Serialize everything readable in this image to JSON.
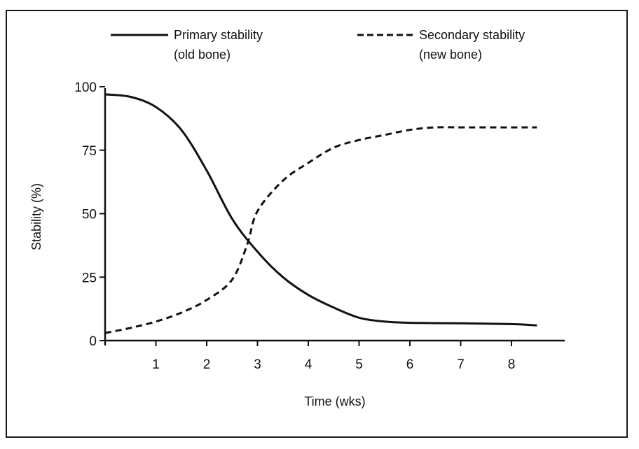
{
  "chart_data": {
    "type": "line",
    "xlabel": "Time (wks)",
    "ylabel": "Stability (%)",
    "xlim": [
      0,
      9
    ],
    "ylim": [
      0,
      100
    ],
    "x_ticks": [
      "1",
      "2",
      "3",
      "4",
      "5",
      "6",
      "7",
      "8"
    ],
    "y_ticks": [
      "0",
      "25",
      "50",
      "75",
      "100"
    ],
    "grid": false,
    "legend_position": "top",
    "series": [
      {
        "name": "Primary stability",
        "name_line2": "(old bone)",
        "style": "solid",
        "x": [
          0,
          0.5,
          1,
          1.5,
          2,
          2.5,
          3,
          3.5,
          4,
          4.5,
          5,
          5.5,
          6,
          7,
          8,
          8.5
        ],
        "y": [
          97,
          96,
          92,
          83,
          67,
          48,
          35,
          25,
          18,
          13,
          9,
          7.5,
          7,
          6.8,
          6.5,
          6
        ]
      },
      {
        "name": "Secondary stability",
        "name_line2": "(new bone)",
        "style": "dashed",
        "x": [
          0,
          0.5,
          1,
          1.5,
          2,
          2.5,
          2.8,
          3,
          3.5,
          4,
          4.5,
          5,
          5.5,
          6,
          6.5,
          7,
          8,
          8.5
        ],
        "y": [
          3,
          5,
          7.5,
          11,
          16,
          24,
          38,
          51,
          63,
          70,
          76,
          79,
          81,
          83,
          84,
          84,
          84,
          84
        ]
      }
    ]
  }
}
